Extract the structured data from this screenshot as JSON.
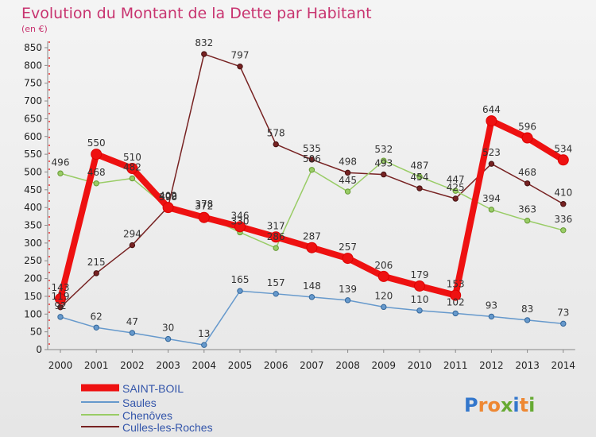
{
  "chart_data": {
    "type": "line",
    "title": "Evolution du Montant de la Dette par Habitant",
    "subtitle": "(en €)",
    "x": [
      "2000",
      "2001",
      "2002",
      "2003",
      "2004",
      "2005",
      "2006",
      "2007",
      "2008",
      "2009",
      "2010",
      "2011",
      "2012",
      "2013",
      "2014"
    ],
    "ylim": [
      0,
      850
    ],
    "yticks": [
      0,
      50,
      100,
      150,
      200,
      250,
      300,
      350,
      400,
      450,
      500,
      550,
      600,
      650,
      700,
      750,
      800,
      850
    ],
    "grid": false,
    "legend_position": "bottom-left",
    "series": [
      {
        "name": "SAINT-BOIL",
        "color": "#ee1111",
        "values": [
          143,
          550,
          510,
          400,
          372,
          346,
          317,
          287,
          257,
          206,
          179,
          153,
          644,
          596,
          534
        ]
      },
      {
        "name": "Saules",
        "color": "#6699cc",
        "values": [
          92,
          62,
          47,
          30,
          13,
          165,
          157,
          148,
          139,
          120,
          110,
          102,
          93,
          83,
          73
        ]
      },
      {
        "name": "Chenôves",
        "color": "#99cc66",
        "values": [
          496,
          468,
          482,
          398,
          378,
          330,
          286,
          506,
          445,
          532,
          487,
          447,
          394,
          363,
          336
        ]
      },
      {
        "name": "Culles-les-Roches",
        "color": "#772222",
        "values": [
          119,
          215,
          294,
          402,
          832,
          797,
          578,
          535,
          498,
          493,
          454,
          425,
          523,
          468,
          410
        ]
      }
    ]
  },
  "brand": {
    "logo_text": "Proxiti"
  }
}
